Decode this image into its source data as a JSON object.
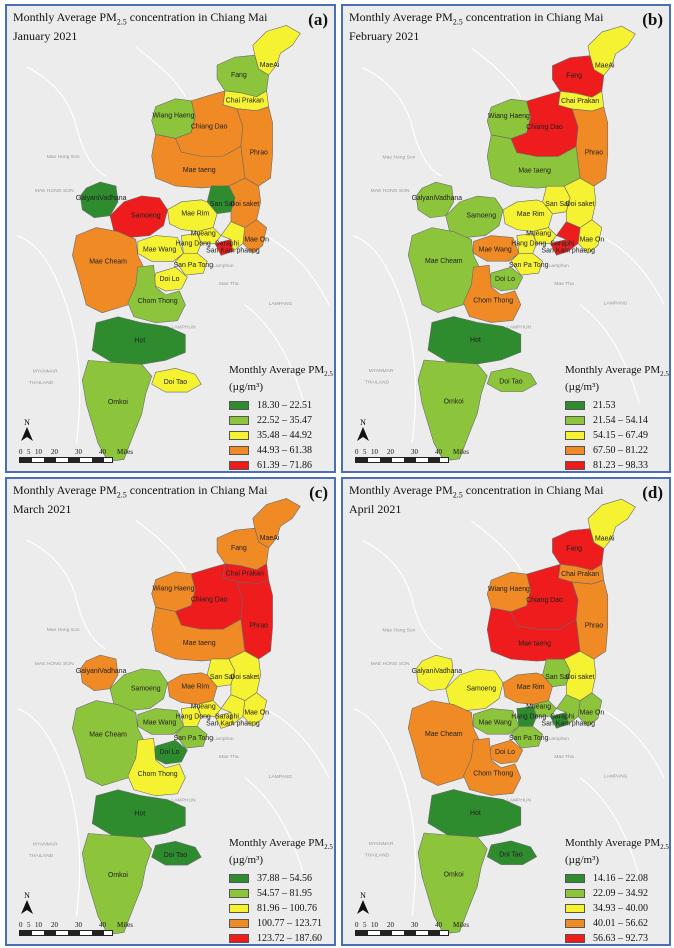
{
  "title_prefix": "Monthly Average PM",
  "title_sub": "2.5",
  "title_suffix": " concentration in Chiang Mai",
  "legend_title": "Monthly Average PM",
  "legend_sub": "2.5",
  "legend_unit": "(µg/m³)",
  "scale_labels": [
    "0",
    "5",
    "10",
    "20",
    "30",
    "40"
  ],
  "scale_unit": "Miles",
  "north": "N",
  "colors": {
    "c1": "#2e8b2e",
    "c2": "#8cc43c",
    "c3": "#f5f232",
    "c4": "#f08a24",
    "c5": "#ee1c1c"
  },
  "bg_labels": [
    "MAE HONG SON",
    "Mae Hong Son",
    "LAMPHUN",
    "LAMPANG",
    "Mae Tha",
    "Lamphun",
    "MYANMAR",
    "THAILAND"
  ],
  "district_names": [
    "MaeAi",
    "Fang",
    "Chai Prakan",
    "Wiang Haeng",
    "Chiang Dao",
    "Phrao",
    "Mae taeng",
    "GalyaniVadhana",
    "Samoeng",
    "San Sai",
    "Mae Rim",
    "Doi saket",
    "Mueang",
    "Hang Dong",
    "Saraphi",
    "Mae On",
    "San Kam phaeng",
    "Mae Wang",
    "San Pa Tong",
    "Mae Cheam",
    "Doi Lo",
    "Chom Thong",
    "Hot",
    "Doi Tao",
    "Omkoi"
  ],
  "panels": [
    {
      "label": "(a)",
      "month": "January 2021",
      "ranges": [
        "18.30 – 22.51",
        "22.52 – 35.47",
        "35.48 – 44.92",
        "44.93 – 61.38",
        "61.39 – 71.86"
      ],
      "districts": {
        "MaeAi": 3,
        "Fang": 2,
        "Chai Prakan": 3,
        "Wiang Haeng": 2,
        "Chiang Dao": 4,
        "Phrao": 4,
        "Mae taeng": 4,
        "GalyaniVadhana": 1,
        "Samoeng": 5,
        "San Sai": 1,
        "Mae Rim": 3,
        "Doi saket": 4,
        "Mueang": 3,
        "Hang Dong": 3,
        "Saraphi": 5,
        "Mae On": 4,
        "San Kam phaeng": 3,
        "Mae Wang": 3,
        "San Pa Tong": 3,
        "Mae Cheam": 4,
        "Doi Lo": 3,
        "Chom Thong": 2,
        "Hot": 1,
        "Doi Tao": 3,
        "Omkoi": 2
      }
    },
    {
      "label": "(b)",
      "month": "February 2021",
      "ranges": [
        "21.53",
        "21.54 – 54.14",
        "54.15 – 67.49",
        "67.50 – 81.22",
        "81.23 – 98.33"
      ],
      "districts": {
        "MaeAi": 3,
        "Fang": 5,
        "Chai Prakan": 3,
        "Wiang Haeng": 2,
        "Chiang Dao": 5,
        "Phrao": 4,
        "Mae taeng": 2,
        "GalyaniVadhana": 2,
        "Samoeng": 2,
        "San Sai": 3,
        "Mae Rim": 3,
        "Doi saket": 3,
        "Mueang": 3,
        "Hang Dong": 3,
        "Saraphi": 5,
        "Mae On": 3,
        "San Kam phaeng": 5,
        "Mae Wang": 4,
        "San Pa Tong": 3,
        "Mae Cheam": 2,
        "Doi Lo": 2,
        "Chom Thong": 4,
        "Hot": 1,
        "Doi Tao": 2,
        "Omkoi": 2
      }
    },
    {
      "label": "(c)",
      "month": "March 2021",
      "ranges": [
        "37.88 – 54.56",
        "54.57 – 81.95",
        "81.96 – 100.76",
        "100.77 – 123.71",
        "123.72 – 187.60"
      ],
      "districts": {
        "MaeAi": 4,
        "Fang": 4,
        "Chai Prakan": 5,
        "Wiang Haeng": 4,
        "Chiang Dao": 5,
        "Phrao": 5,
        "Mae taeng": 4,
        "GalyaniVadhana": 4,
        "Samoeng": 2,
        "San Sai": 3,
        "Mae Rim": 4,
        "Doi saket": 3,
        "Mueang": 3,
        "Hang Dong": 3,
        "Saraphi": 3,
        "Mae On": 3,
        "San Kam phaeng": 3,
        "Mae Wang": 2,
        "San Pa Tong": 2,
        "Mae Cheam": 2,
        "Doi Lo": 1,
        "Chom Thong": 3,
        "Hot": 1,
        "Doi Tao": 1,
        "Omkoi": 2
      }
    },
    {
      "label": "(d)",
      "month": "April 2021",
      "ranges": [
        "14.16 – 22.08",
        "22.09 – 34.92",
        "34.93 – 40.00",
        "40.01 – 56.62",
        "56.63 – 92.73"
      ],
      "districts": {
        "MaeAi": 3,
        "Fang": 5,
        "Chai Prakan": 4,
        "Wiang Haeng": 4,
        "Chiang Dao": 5,
        "Phrao": 4,
        "Mae taeng": 5,
        "GalyaniVadhana": 3,
        "Samoeng": 3,
        "San Sai": 2,
        "Mae Rim": 4,
        "Doi saket": 3,
        "Mueang": 2,
        "Hang Dong": 1,
        "Saraphi": 1,
        "Mae On": 2,
        "San Kam phaeng": 2,
        "Mae Wang": 2,
        "San Pa Tong": 2,
        "Mae Cheam": 4,
        "Doi Lo": 4,
        "Chom Thong": 4,
        "Hot": 1,
        "Doi Tao": 1,
        "Omkoi": 2
      }
    }
  ]
}
